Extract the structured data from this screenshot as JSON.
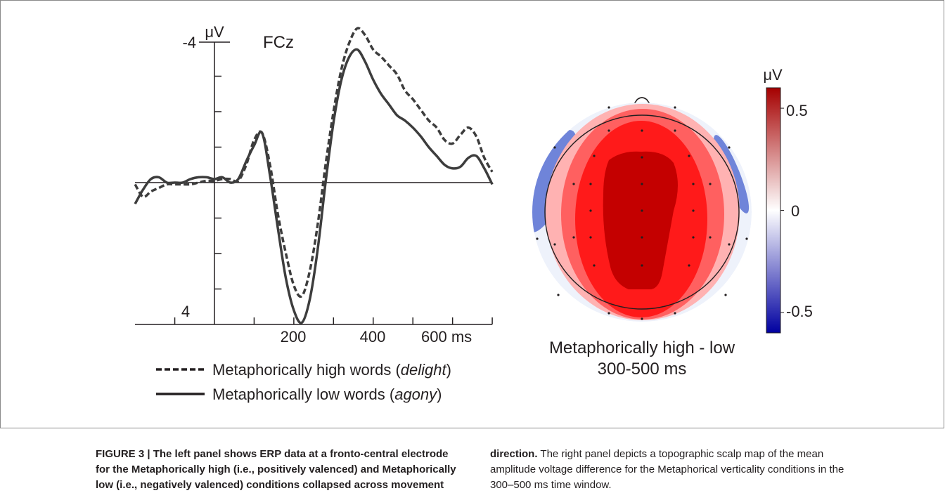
{
  "chart_data": [
    {
      "type": "line",
      "panel": "left",
      "title": "FCz",
      "ylabel": "μV",
      "y_axis_inverted": true,
      "ylim": [
        4,
        -4
      ],
      "ytick_labels": [
        "-4",
        "4"
      ],
      "xlim": [
        -200,
        700
      ],
      "xtick_labels": [
        "200",
        "400",
        "600 ms"
      ],
      "xtick_values": [
        200,
        400,
        600
      ],
      "minor_xticks": [
        -100,
        100,
        300,
        500,
        700
      ],
      "minor_yticks": [
        -3,
        -2,
        -1,
        1,
        2,
        3
      ],
      "series": [
        {
          "name": "Metaphorically high words (delight)",
          "legend_plain": "Metaphorically high words (",
          "legend_italic": "delight",
          "legend_close": ")",
          "style": "dashed",
          "x": [
            -200,
            -180,
            -160,
            -140,
            -120,
            -100,
            -80,
            -60,
            -40,
            -20,
            0,
            20,
            40,
            60,
            80,
            100,
            120,
            140,
            160,
            180,
            200,
            220,
            240,
            260,
            280,
            300,
            320,
            340,
            360,
            380,
            400,
            420,
            440,
            460,
            480,
            500,
            520,
            540,
            560,
            580,
            600,
            620,
            640,
            660,
            680,
            700
          ],
          "y": [
            0.05,
            0.4,
            0.25,
            0.15,
            0.05,
            0.05,
            0.05,
            0.05,
            0.0,
            -0.05,
            -0.05,
            -0.1,
            -0.1,
            -0.05,
            -0.5,
            -1.2,
            -1.4,
            -0.5,
            0.9,
            2.0,
            2.9,
            3.2,
            2.5,
            1.2,
            -0.5,
            -2.0,
            -3.2,
            -3.95,
            -4.35,
            -4.15,
            -3.75,
            -3.55,
            -3.3,
            -3.05,
            -2.6,
            -2.35,
            -2.05,
            -1.75,
            -1.55,
            -1.2,
            -1.1,
            -1.35,
            -1.55,
            -1.3,
            -0.7,
            -0.3
          ]
        },
        {
          "name": "Metaphorically low words (agony)",
          "legend_plain": "Metaphorically low words (",
          "legend_italic": "agony",
          "legend_close": ")",
          "style": "solid",
          "x": [
            -200,
            -180,
            -160,
            -140,
            -120,
            -100,
            -80,
            -60,
            -40,
            -20,
            0,
            20,
            40,
            60,
            80,
            100,
            120,
            140,
            160,
            180,
            200,
            220,
            240,
            260,
            280,
            300,
            320,
            340,
            360,
            380,
            400,
            420,
            440,
            460,
            480,
            500,
            520,
            540,
            560,
            580,
            600,
            620,
            640,
            660,
            680,
            700
          ],
          "y": [
            0.6,
            0.2,
            -0.1,
            -0.15,
            0.0,
            0.0,
            0.0,
            -0.1,
            -0.15,
            -0.15,
            -0.1,
            -0.15,
            0.0,
            -0.1,
            -0.6,
            -1.05,
            -1.4,
            -0.2,
            1.3,
            2.7,
            3.6,
            3.95,
            3.3,
            1.9,
            0.0,
            -1.7,
            -2.9,
            -3.55,
            -3.75,
            -3.4,
            -2.9,
            -2.5,
            -2.2,
            -1.9,
            -1.75,
            -1.55,
            -1.3,
            -1.0,
            -0.75,
            -0.5,
            -0.4,
            -0.45,
            -0.7,
            -0.75,
            -0.4,
            0.05
          ]
        }
      ]
    },
    {
      "type": "heatmap",
      "panel": "right",
      "map_kind": "topographic scalp map",
      "title_line1": "Metaphorically high - low",
      "title_line2": "300-500 ms",
      "colorbar": {
        "unit": "μV",
        "tick_labels": [
          "0.5",
          "0",
          "-0.5"
        ],
        "tick_values": [
          0.5,
          0,
          -0.5
        ],
        "range": [
          -0.6,
          0.6
        ],
        "colors": {
          "high": "#a50000",
          "mid": "#ffffff",
          "low": "#0000a0"
        }
      },
      "colors": {
        "outer": "#eef2fb",
        "blue_band": "#6f84d9",
        "light_red": "#ffb2b2",
        "mid_red": "#ff6060",
        "red": "#ff1a1a",
        "dark_red": "#c40000"
      },
      "electrode_count": 35
    }
  ],
  "caption": {
    "label": "FIGURE 3 |",
    "bold_text": "The left panel shows ERP data at a fronto-central electrode for the Metaphorically high (i.e., positively valenced) and Metaphorically low (i.e., negatively valenced) conditions collapsed across movement direction.",
    "bold_line1": "FIGURE 3 | The left panel shows ERP data at a fronto-central electrode",
    "bold_line2": "for the Metaphorically high (i.e., positively valenced) and Metaphorically",
    "bold_line3": "low (i.e., negatively valenced) conditions collapsed across movement",
    "bold_line4": "direction.",
    "plain_line1": "The right panel depicts a topographic scalp map of the mean",
    "plain_line2": "amplitude voltage difference for the Metaphorical verticality conditions in the",
    "plain_line3": "300–500 ms time window."
  }
}
